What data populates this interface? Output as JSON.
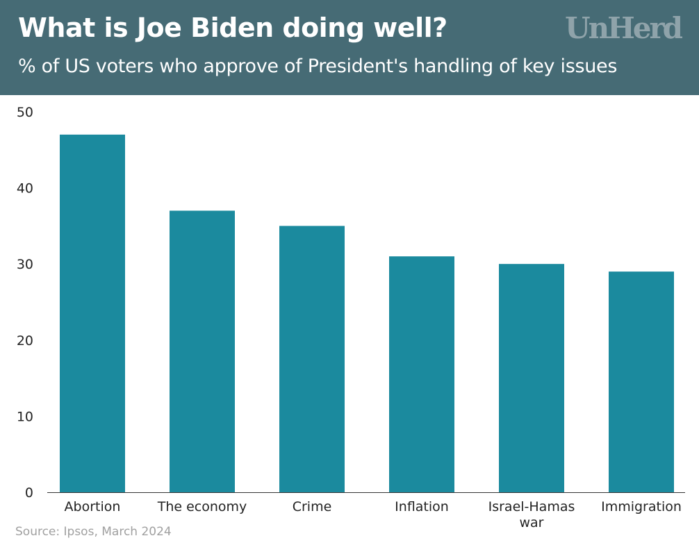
{
  "header": {
    "title": "What is Joe Biden doing well?",
    "subtitle": "% of US voters who approve of President's handling of key issues",
    "logo": "UnHerd"
  },
  "source": "Source: Ipsos, March 2024",
  "colors": {
    "header_bg": "#466b75",
    "bar": "#1b8a9e",
    "logo": "#8fa3aa"
  },
  "chart_data": {
    "type": "bar",
    "title": "What is Joe Biden doing well?",
    "subtitle": "% of US voters who approve of President's handling of key issues",
    "categories": [
      [
        "Abortion"
      ],
      [
        "The economy"
      ],
      [
        "Crime"
      ],
      [
        "Inflation"
      ],
      [
        "Israel-Hamas",
        "war"
      ],
      [
        "Immigration"
      ]
    ],
    "values": [
      47,
      37,
      35,
      31,
      30,
      29
    ],
    "yticks": [
      0,
      10,
      20,
      30,
      40,
      50
    ],
    "ylim": [
      0,
      50
    ],
    "grid": false,
    "xlabel": "",
    "ylabel": ""
  }
}
